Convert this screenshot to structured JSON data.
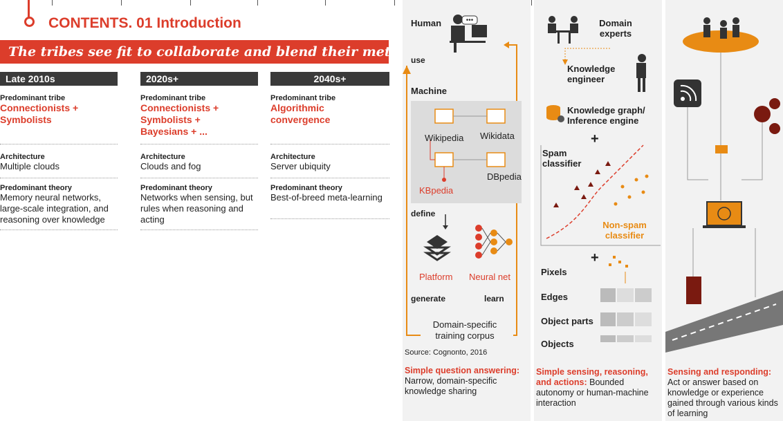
{
  "header": {
    "title": "CONTENTS. 01 Introduction",
    "banner": "The tribes see fit to collaborate and blend their methods"
  },
  "columns": [
    {
      "period": "Late 2010s",
      "tribe_label": "Predominant tribe",
      "tribe": "Connectionists + Symbolists",
      "arch_label": "Architecture",
      "arch": "Multiple clouds",
      "theory_label": "Predominant theory",
      "theory": "Memory neural networks, large-scale integration, and reasoning over knowledge"
    },
    {
      "period": "2020s+",
      "tribe_label": "Predominant tribe",
      "tribe": "Connectionists + Symbolists + Bayesians + ...",
      "arch_label": "Architecture",
      "arch": "Clouds and fog",
      "theory_label": "Predominant theory",
      "theory": "Networks when sensing, but rules when reasoning and acting"
    },
    {
      "period": "2040s+",
      "tribe_label": "Predominant tribe",
      "tribe": "Algorithmic convergence",
      "arch_label": "Architecture",
      "arch": "Server ubiquity",
      "theory_label": "Predominant theory",
      "theory": "Best-of-breed meta-learning"
    }
  ],
  "panel1": {
    "human": "Human",
    "use": "use",
    "machine": "Machine",
    "wikipedia": "Wikipedia",
    "wikidata": "Wikidata",
    "kbpedia": "KBpedia",
    "dbpedia": "DBpedia",
    "define": "define",
    "platform": "Platform",
    "neural_net": "Neural net",
    "generate": "generate",
    "learn": "learn",
    "corpus": "Domain-specific training corpus",
    "source": "Source: Cognonto, 2016",
    "caption_head": "Simple question answering:",
    "caption_body": "Narrow, domain-specific knowledge sharing"
  },
  "panel2": {
    "domain_experts": "Domain experts",
    "knowledge_engineer": "Knowledge engineer",
    "knowledge_graph": "Knowledge graph/ Inference engine",
    "plus": "+",
    "spam": "Spam classifier",
    "nonspam": "Non-spam classifier",
    "pixels": "Pixels",
    "edges": "Edges",
    "object_parts": "Object parts",
    "objects": "Objects",
    "caption_head": "Simple sensing, reasoning, and actions:",
    "caption_body": "Bounded autonomy or human-machine interaction"
  },
  "panel3": {
    "caption_head": "Sensing and responding:",
    "caption_body": "Act or answer based on knowledge or experience gained through various kinds of learning"
  },
  "colors": {
    "accent": "#dc3d2b",
    "orange": "#e88b14",
    "dark": "#3a3a3a"
  }
}
